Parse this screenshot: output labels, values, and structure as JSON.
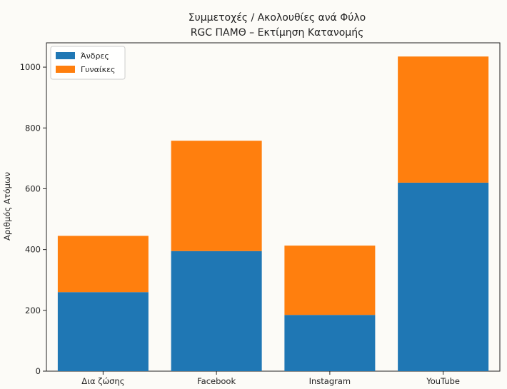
{
  "chart_data": {
    "type": "bar",
    "stacked": true,
    "title": "Συμμετοχές / Ακολουθίες ανά Φύλο",
    "subtitle": "RGC ΠΑΜΘ – Εκτίμηση Κατανομής",
    "xlabel": "",
    "ylabel": "Αριθμός Ατόμων",
    "categories": [
      "Δια ζώσης",
      "Facebook",
      "Instagram",
      "YouTube"
    ],
    "series": [
      {
        "name": "Άνδρες",
        "color": "#1f77b4",
        "values": [
          260,
          395,
          185,
          620
        ]
      },
      {
        "name": "Γυναίκες",
        "color": "#ff7f0e",
        "values": [
          185,
          363,
          228,
          415
        ]
      }
    ],
    "ylim": [
      0,
      1080
    ],
    "yticks": [
      "0",
      "200",
      "400",
      "600",
      "800",
      "1000"
    ],
    "grid": false,
    "legend": "top-left"
  }
}
